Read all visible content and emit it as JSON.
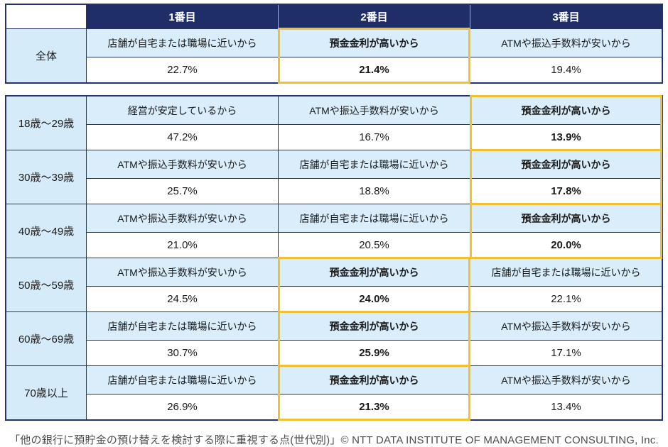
{
  "chart_data": {
    "type": "table",
    "title": "他の銀行に預貯金の預け替えを検討する際に重視する点(世代別)",
    "columns": [
      "1番目",
      "2番目",
      "3番目"
    ],
    "highlight_color": "#f0c233",
    "header_color": "#1f2e66",
    "cell_color": "#d9edfb",
    "overall": {
      "label": "全体",
      "cells": [
        {
          "reason": "店舗が自宅または職場に近いから",
          "value": "22.7%",
          "highlight": false
        },
        {
          "reason": "預金金利が高いから",
          "value": "21.4%",
          "highlight": true
        },
        {
          "reason": "ATMや振込手数料が安いから",
          "value": "19.4%",
          "highlight": false
        }
      ]
    },
    "age_groups": [
      {
        "label": "18歳～29歳",
        "cells": [
          {
            "reason": "経営が安定しているから",
            "value": "47.2%",
            "highlight": false
          },
          {
            "reason": "ATMや振込手数料が安いから",
            "value": "16.7%",
            "highlight": false
          },
          {
            "reason": "預金金利が高いから",
            "value": "13.9%",
            "highlight": true
          }
        ]
      },
      {
        "label": "30歳～39歳",
        "cells": [
          {
            "reason": "ATMや振込手数料が安いから",
            "value": "25.7%",
            "highlight": false
          },
          {
            "reason": "店舗が自宅または職場に近いから",
            "value": "18.8%",
            "highlight": false
          },
          {
            "reason": "預金金利が高いから",
            "value": "17.8%",
            "highlight": true
          }
        ]
      },
      {
        "label": "40歳～49歳",
        "cells": [
          {
            "reason": "ATMや振込手数料が安いから",
            "value": "21.0%",
            "highlight": false
          },
          {
            "reason": "店舗が自宅または職場に近いから",
            "value": "20.5%",
            "highlight": false
          },
          {
            "reason": "預金金利が高いから",
            "value": "20.0%",
            "highlight": true
          }
        ]
      },
      {
        "label": "50歳～59歳",
        "cells": [
          {
            "reason": "ATMや振込手数料が安いから",
            "value": "24.5%",
            "highlight": false
          },
          {
            "reason": "預金金利が高いから",
            "value": "24.0%",
            "highlight": true
          },
          {
            "reason": "店舗が自宅または職場に近いから",
            "value": "22.1%",
            "highlight": false
          }
        ]
      },
      {
        "label": "60歳～69歳",
        "cells": [
          {
            "reason": "店舗が自宅または職場に近いから",
            "value": "30.7%",
            "highlight": false
          },
          {
            "reason": "預金金利が高いから",
            "value": "25.9%",
            "highlight": true
          },
          {
            "reason": "ATMや振込手数料が安いから",
            "value": "17.1%",
            "highlight": false
          }
        ]
      },
      {
        "label": "70歳以上",
        "cells": [
          {
            "reason": "店舗が自宅または職場に近いから",
            "value": "26.9%",
            "highlight": false
          },
          {
            "reason": "預金金利が高いから",
            "value": "21.3%",
            "highlight": true
          },
          {
            "reason": "ATMや振込手数料が安いから",
            "value": "13.4%",
            "highlight": false
          }
        ]
      }
    ]
  },
  "caption": "「他の銀行に預貯金の預け替えを検討する際に重視する点(世代別)」© NTT DATA INSTITUTE OF MANAGEMENT CONSULTING, Inc."
}
